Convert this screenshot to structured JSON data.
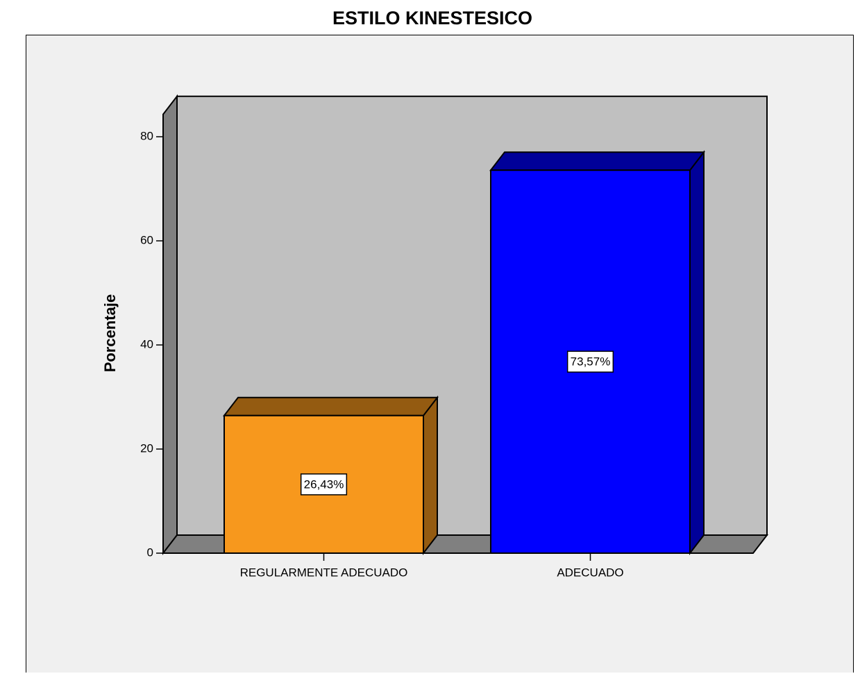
{
  "chart_data": {
    "type": "bar3d",
    "title": "ESTILO KINESTESICO",
    "ylabel": "Porcentaje",
    "categories": [
      "REGULARMENTE ADECUADO",
      "ADECUADO"
    ],
    "values": [
      26.43,
      73.57
    ],
    "value_labels": [
      "26,43%",
      "73,57%"
    ],
    "colors": [
      "#f7981d",
      "#0000ff"
    ],
    "ylim": [
      0,
      84.3
    ],
    "yticks": [
      0,
      20,
      40,
      60,
      80
    ]
  }
}
